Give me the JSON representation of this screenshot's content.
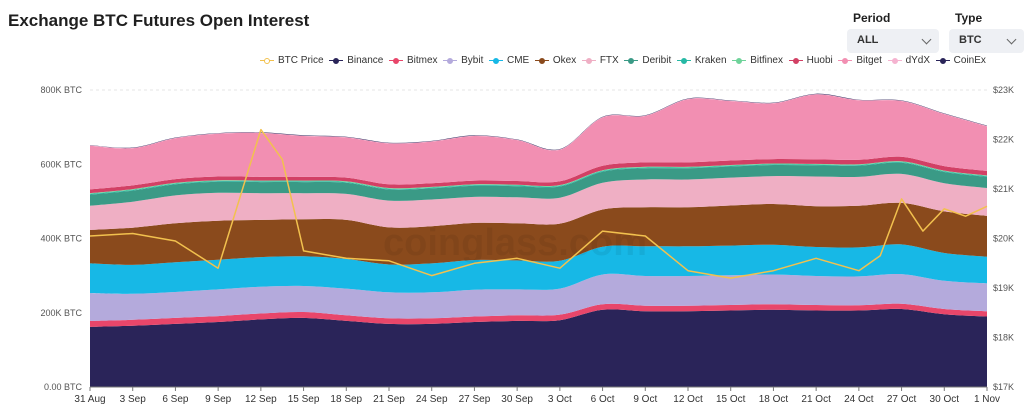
{
  "header": {
    "title": "Exchange BTC Futures Open Interest"
  },
  "controls": {
    "period_label": "Period",
    "period_value": "ALL",
    "type_label": "Type",
    "type_value": "BTC"
  },
  "watermark": "coinglass.com",
  "legend": [
    {
      "name": "BTC Price",
      "color": "#f2c14e",
      "kind": "line"
    },
    {
      "name": "Binance",
      "color": "#2a2459",
      "kind": "area"
    },
    {
      "name": "Bitmex",
      "color": "#e8466a",
      "kind": "area"
    },
    {
      "name": "Bybit",
      "color": "#b4aadc",
      "kind": "area"
    },
    {
      "name": "CME",
      "color": "#17b8e6",
      "kind": "area"
    },
    {
      "name": "Okex",
      "color": "#8a4a1c",
      "kind": "area"
    },
    {
      "name": "FTX",
      "color": "#efafc4",
      "kind": "area"
    },
    {
      "name": "Deribit",
      "color": "#3a9a86",
      "kind": "area"
    },
    {
      "name": "Kraken",
      "color": "#27b9a5",
      "kind": "area"
    },
    {
      "name": "Bitfinex",
      "color": "#6fd39a",
      "kind": "area"
    },
    {
      "name": "Huobi",
      "color": "#d24065",
      "kind": "area"
    },
    {
      "name": "Bitget",
      "color": "#f28fb2",
      "kind": "area"
    },
    {
      "name": "dYdX",
      "color": "#f5b3d0",
      "kind": "area"
    },
    {
      "name": "CoinEx",
      "color": "#2a2459",
      "kind": "area"
    }
  ],
  "chart_data": {
    "type": "area",
    "title": "Exchange BTC Futures Open Interest",
    "stacked": true,
    "x_ticks": [
      "31 Aug",
      "3 Sep",
      "6 Sep",
      "9 Sep",
      "12 Sep",
      "15 Sep",
      "18 Sep",
      "21 Sep",
      "24 Sep",
      "27 Sep",
      "30 Sep",
      "3 Oct",
      "6 Oct",
      "9 Oct",
      "12 Oct",
      "15 Oct",
      "18 Oct",
      "21 Oct",
      "24 Oct",
      "27 Oct",
      "30 Oct",
      "1 Nov"
    ],
    "y_left": {
      "unit": "BTC",
      "ylim": [
        0,
        800000
      ],
      "ticks": [
        "0.00 BTC",
        "200K BTC",
        "400K BTC",
        "600K BTC",
        "800K BTC"
      ]
    },
    "y_right": {
      "unit": "USD",
      "ylim": [
        17000,
        23000
      ],
      "ticks": [
        "$17K",
        "$18K",
        "$19K",
        "$20K",
        "$21K",
        "$22K",
        "$23K"
      ]
    },
    "series": [
      {
        "name": "Binance",
        "color": "#2a2459",
        "values": [
          162000,
          165000,
          170000,
          175000,
          182000,
          186000,
          178000,
          170000,
          170000,
          175000,
          178000,
          180000,
          208000,
          204000,
          204000,
          206000,
          208000,
          206000,
          206000,
          210000,
          196000,
          190000
        ]
      },
      {
        "name": "Bitmex",
        "color": "#e8466a",
        "values": [
          16000,
          16000,
          16000,
          16000,
          16000,
          16000,
          15000,
          15000,
          15000,
          15000,
          15000,
          15000,
          15000,
          15000,
          15000,
          15000,
          15000,
          15000,
          14000,
          14000,
          14000,
          14000
        ]
      },
      {
        "name": "Bybit",
        "color": "#b4aadc",
        "values": [
          75000,
          70000,
          70000,
          72000,
          72000,
          70000,
          72000,
          70000,
          70000,
          72000,
          70000,
          70000,
          80000,
          80000,
          80000,
          80000,
          80000,
          78000,
          78000,
          80000,
          76000,
          75000
        ]
      },
      {
        "name": "CME",
        "color": "#17b8e6",
        "values": [
          80000,
          78000,
          80000,
          80000,
          80000,
          80000,
          80000,
          75000,
          78000,
          80000,
          78000,
          75000,
          75000,
          80000,
          80000,
          80000,
          80000,
          78000,
          78000,
          80000,
          75000,
          72000
        ]
      },
      {
        "name": "Okex",
        "color": "#8a4a1c",
        "values": [
          90000,
          100000,
          105000,
          105000,
          100000,
          100000,
          105000,
          100000,
          100000,
          100000,
          100000,
          100000,
          100000,
          105000,
          105000,
          108000,
          110000,
          110000,
          112000,
          112000,
          112000,
          110000
        ]
      },
      {
        "name": "FTX",
        "color": "#efafc4",
        "values": [
          65000,
          70000,
          75000,
          75000,
          72000,
          70000,
          70000,
          72000,
          72000,
          70000,
          70000,
          70000,
          72000,
          75000,
          75000,
          75000,
          75000,
          80000,
          78000,
          78000,
          76000,
          75000
        ]
      },
      {
        "name": "Deribit",
        "color": "#3a9a86",
        "values": [
          30000,
          30000,
          30000,
          30000,
          30000,
          30000,
          30000,
          30000,
          30000,
          30000,
          30000,
          30000,
          30000,
          30000,
          30000,
          30000,
          30000,
          30000,
          30000,
          30000,
          30000,
          30000
        ]
      },
      {
        "name": "Kraken",
        "color": "#27b9a5",
        "values": [
          2000,
          2000,
          2000,
          2000,
          2000,
          2000,
          2000,
          2000,
          2000,
          2000,
          2000,
          2000,
          2000,
          2000,
          2000,
          2000,
          2000,
          2000,
          2000,
          2000,
          2000,
          2000
        ]
      },
      {
        "name": "Bitfinex",
        "color": "#6fd39a",
        "values": [
          2000,
          2000,
          2000,
          2000,
          2000,
          2000,
          2000,
          2000,
          2000,
          2000,
          2000,
          2000,
          2000,
          2000,
          2000,
          2000,
          2000,
          2000,
          2000,
          2000,
          2000,
          2000
        ]
      },
      {
        "name": "Huobi",
        "color": "#d24065",
        "values": [
          10000,
          10000,
          10000,
          10000,
          10000,
          10000,
          10000,
          10000,
          10000,
          10000,
          10000,
          10000,
          12000,
          12000,
          12000,
          12000,
          12000,
          12000,
          12000,
          12000,
          12000,
          12000
        ]
      },
      {
        "name": "Bitget",
        "color": "#f28fb2",
        "values": [
          118000,
          100000,
          110000,
          115000,
          118000,
          110000,
          108000,
          110000,
          112000,
          120000,
          110000,
          85000,
          130000,
          125000,
          170000,
          160000,
          150000,
          175000,
          160000,
          150000,
          140000,
          120000
        ]
      },
      {
        "name": "dYdX",
        "color": "#f5b3d0",
        "values": [
          1000,
          1000,
          1000,
          1000,
          1000,
          1000,
          1000,
          1000,
          1000,
          1000,
          1000,
          1000,
          1000,
          1000,
          1000,
          1000,
          1000,
          1000,
          1000,
          1000,
          1000,
          1000
        ]
      },
      {
        "name": "CoinEx",
        "color": "#2a2459",
        "values": [
          1000,
          1000,
          1000,
          1000,
          1000,
          1000,
          1000,
          1000,
          1000,
          1000,
          1000,
          1000,
          1000,
          1000,
          1000,
          1000,
          1000,
          1000,
          1000,
          1000,
          1000,
          1000
        ]
      }
    ],
    "btc_price": {
      "name": "BTC Price",
      "color": "#f2c14e",
      "axis": "right",
      "x": [
        0,
        1,
        2,
        3,
        3.5,
        4,
        4.5,
        5,
        6,
        7,
        8,
        9,
        10,
        11,
        12,
        13,
        14,
        15,
        16,
        17,
        18,
        18.5,
        19,
        19.5,
        20,
        20.5,
        21
      ],
      "values": [
        20050,
        20100,
        19950,
        19400,
        20800,
        22200,
        21600,
        19750,
        19600,
        19550,
        19250,
        19500,
        19600,
        19400,
        20150,
        20050,
        19350,
        19200,
        19350,
        19600,
        19350,
        19650,
        20800,
        20150,
        20600,
        20450,
        20650
      ]
    }
  }
}
